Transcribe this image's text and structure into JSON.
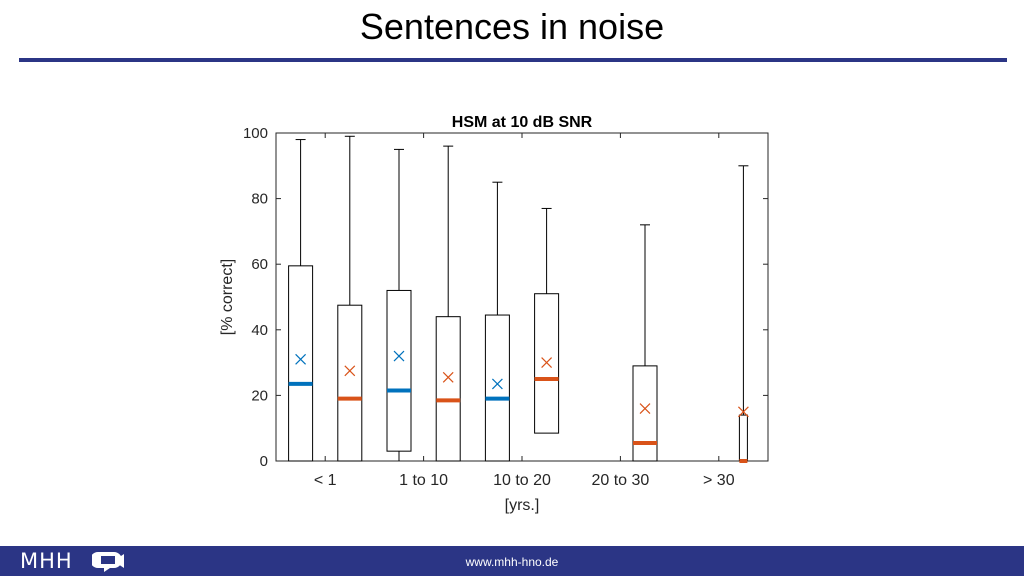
{
  "slide": {
    "title": "Sentences in noise",
    "footer_url": "www.mhh-hno.de",
    "logo_text": "MHH",
    "colors": {
      "accent": "#2b3585",
      "series_blue": "#0072bd",
      "series_orange": "#d95319"
    }
  },
  "chart_data": {
    "type": "box",
    "title": "HSM at 10 dB SNR",
    "xlabel": "[yrs.]",
    "ylabel": "[% correct]",
    "ylim": [
      0,
      100
    ],
    "yticks": [
      0,
      20,
      40,
      60,
      80,
      100
    ],
    "categories": [
      "< 1",
      "1 to 10",
      "10 to 20",
      "20 to 30",
      "> 30"
    ],
    "grid": false,
    "boxes": [
      {
        "category": "< 1",
        "color": "#0072bd",
        "whisker_low": 0,
        "q1": 0,
        "median": 23.5,
        "q3": 59.5,
        "whisker_high": 98,
        "mean": 31
      },
      {
        "category": "< 1",
        "color": "#d95319",
        "whisker_low": 0,
        "q1": 0,
        "median": 19,
        "q3": 47.5,
        "whisker_high": 99,
        "mean": 27.5
      },
      {
        "category": "1 to 10",
        "color": "#0072bd",
        "whisker_low": 0,
        "q1": 3,
        "median": 21.5,
        "q3": 52,
        "whisker_high": 95,
        "mean": 32
      },
      {
        "category": "1 to 10",
        "color": "#d95319",
        "whisker_low": 0,
        "q1": 0,
        "median": 18.5,
        "q3": 44,
        "whisker_high": 96,
        "mean": 25.5
      },
      {
        "category": "10 to 20",
        "color": "#0072bd",
        "whisker_low": 0,
        "q1": 0,
        "median": 19,
        "q3": 44.5,
        "whisker_high": 85,
        "mean": 23.5
      },
      {
        "category": "10 to 20",
        "color": "#d95319",
        "whisker_low": 8.5,
        "q1": 8.5,
        "median": 25,
        "q3": 51,
        "whisker_high": 77,
        "mean": 30
      },
      {
        "category": "20 to 30",
        "color": "#d95319",
        "whisker_low": 0,
        "q1": 0,
        "median": 5.5,
        "q3": 29,
        "whisker_high": 72,
        "mean": 16
      },
      {
        "category": "> 30",
        "color": "#d95319",
        "whisker_low": 0,
        "q1": 0,
        "median": 0,
        "q3": 14,
        "whisker_high": 90,
        "mean": 15
      }
    ]
  }
}
